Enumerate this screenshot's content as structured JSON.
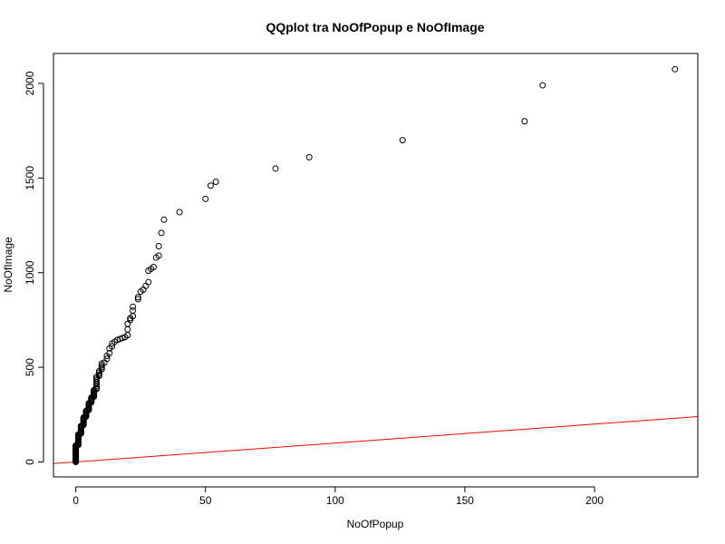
{
  "chart_data": {
    "type": "scatter",
    "title": "QQplot tra NoOfPopup e NoOfImage",
    "xlabel": "NoOfPopup",
    "ylabel": "NoOfImage",
    "xlim": [
      -8.6,
      239.8
    ],
    "ylim": [
      -79,
      2158
    ],
    "x_ticks": [
      0,
      50,
      100,
      150,
      200
    ],
    "y_ticks": [
      0,
      500,
      1000,
      1500,
      2000
    ],
    "reference_line": {
      "color": "#ff0000",
      "intercept": 0,
      "slope": 1
    },
    "points": [
      [
        0,
        0
      ],
      [
        0,
        3
      ],
      [
        0,
        6
      ],
      [
        0,
        9
      ],
      [
        0,
        12
      ],
      [
        0,
        15
      ],
      [
        0,
        18
      ],
      [
        0,
        21
      ],
      [
        0,
        24
      ],
      [
        0,
        27
      ],
      [
        0,
        30
      ],
      [
        0,
        33
      ],
      [
        0,
        36
      ],
      [
        0,
        39
      ],
      [
        0,
        42
      ],
      [
        0,
        45
      ],
      [
        0,
        48
      ],
      [
        0,
        51
      ],
      [
        0,
        54
      ],
      [
        0,
        57
      ],
      [
        0,
        60
      ],
      [
        0,
        63
      ],
      [
        0,
        66
      ],
      [
        0,
        69
      ],
      [
        0,
        72
      ],
      [
        0,
        75
      ],
      [
        0,
        78
      ],
      [
        0,
        81
      ],
      [
        0,
        84
      ],
      [
        0,
        87
      ],
      [
        1,
        90
      ],
      [
        1,
        95
      ],
      [
        1,
        100
      ],
      [
        1,
        105
      ],
      [
        1,
        110
      ],
      [
        1,
        115
      ],
      [
        1,
        120
      ],
      [
        1,
        125
      ],
      [
        1,
        130
      ],
      [
        1,
        135
      ],
      [
        1,
        140
      ],
      [
        1,
        145
      ],
      [
        2,
        150
      ],
      [
        2,
        155
      ],
      [
        2,
        160
      ],
      [
        2,
        165
      ],
      [
        2,
        170
      ],
      [
        2,
        175
      ],
      [
        2,
        180
      ],
      [
        2,
        185
      ],
      [
        2,
        190
      ],
      [
        3,
        195
      ],
      [
        3,
        200
      ],
      [
        3,
        205
      ],
      [
        3,
        210
      ],
      [
        3,
        215
      ],
      [
        3,
        220
      ],
      [
        3,
        225
      ],
      [
        3,
        230
      ],
      [
        3,
        235
      ],
      [
        4,
        240
      ],
      [
        4,
        245
      ],
      [
        4,
        250
      ],
      [
        4,
        255
      ],
      [
        4,
        260
      ],
      [
        4,
        265
      ],
      [
        4,
        270
      ],
      [
        5,
        275
      ],
      [
        5,
        280
      ],
      [
        5,
        285
      ],
      [
        5,
        290
      ],
      [
        5,
        295
      ],
      [
        5,
        300
      ],
      [
        5,
        305
      ],
      [
        5,
        310
      ],
      [
        6,
        315
      ],
      [
        6,
        320
      ],
      [
        6,
        325
      ],
      [
        6,
        330
      ],
      [
        6,
        335
      ],
      [
        6,
        340
      ],
      [
        7,
        345
      ],
      [
        7,
        350
      ],
      [
        7,
        355
      ],
      [
        7,
        360
      ],
      [
        7,
        365
      ],
      [
        7,
        370
      ],
      [
        7,
        375
      ],
      [
        7,
        380
      ],
      [
        8,
        385
      ],
      [
        8,
        390
      ],
      [
        8,
        400
      ],
      [
        8,
        410
      ],
      [
        8,
        420
      ],
      [
        8,
        430
      ],
      [
        8,
        440
      ],
      [
        8,
        450
      ],
      [
        9,
        455
      ],
      [
        9,
        460
      ],
      [
        9,
        470
      ],
      [
        9,
        480
      ],
      [
        10,
        490
      ],
      [
        10,
        500
      ],
      [
        10,
        510
      ],
      [
        10,
        520
      ],
      [
        11,
        525
      ],
      [
        12,
        545
      ],
      [
        12,
        560
      ],
      [
        13,
        575
      ],
      [
        13,
        600
      ],
      [
        14,
        610
      ],
      [
        14,
        625
      ],
      [
        15,
        635
      ],
      [
        16,
        645
      ],
      [
        17,
        650
      ],
      [
        18,
        655
      ],
      [
        19,
        660
      ],
      [
        20,
        670
      ],
      [
        20,
        700
      ],
      [
        20,
        730
      ],
      [
        21,
        750
      ],
      [
        21,
        760
      ],
      [
        22,
        770
      ],
      [
        22,
        800
      ],
      [
        22,
        820
      ],
      [
        24,
        860
      ],
      [
        24,
        870
      ],
      [
        25,
        900
      ],
      [
        26,
        910
      ],
      [
        27,
        930
      ],
      [
        28,
        950
      ],
      [
        28,
        1010
      ],
      [
        29,
        1020
      ],
      [
        30,
        1030
      ],
      [
        31,
        1080
      ],
      [
        32,
        1090
      ],
      [
        32,
        1140
      ],
      [
        33,
        1210
      ],
      [
        34,
        1280
      ],
      [
        40,
        1320
      ],
      [
        50,
        1390
      ],
      [
        52,
        1460
      ],
      [
        54,
        1480
      ],
      [
        77,
        1550
      ],
      [
        90,
        1610
      ],
      [
        126,
        1700
      ],
      [
        173,
        1800
      ],
      [
        180,
        1990
      ],
      [
        231,
        2075
      ]
    ]
  }
}
